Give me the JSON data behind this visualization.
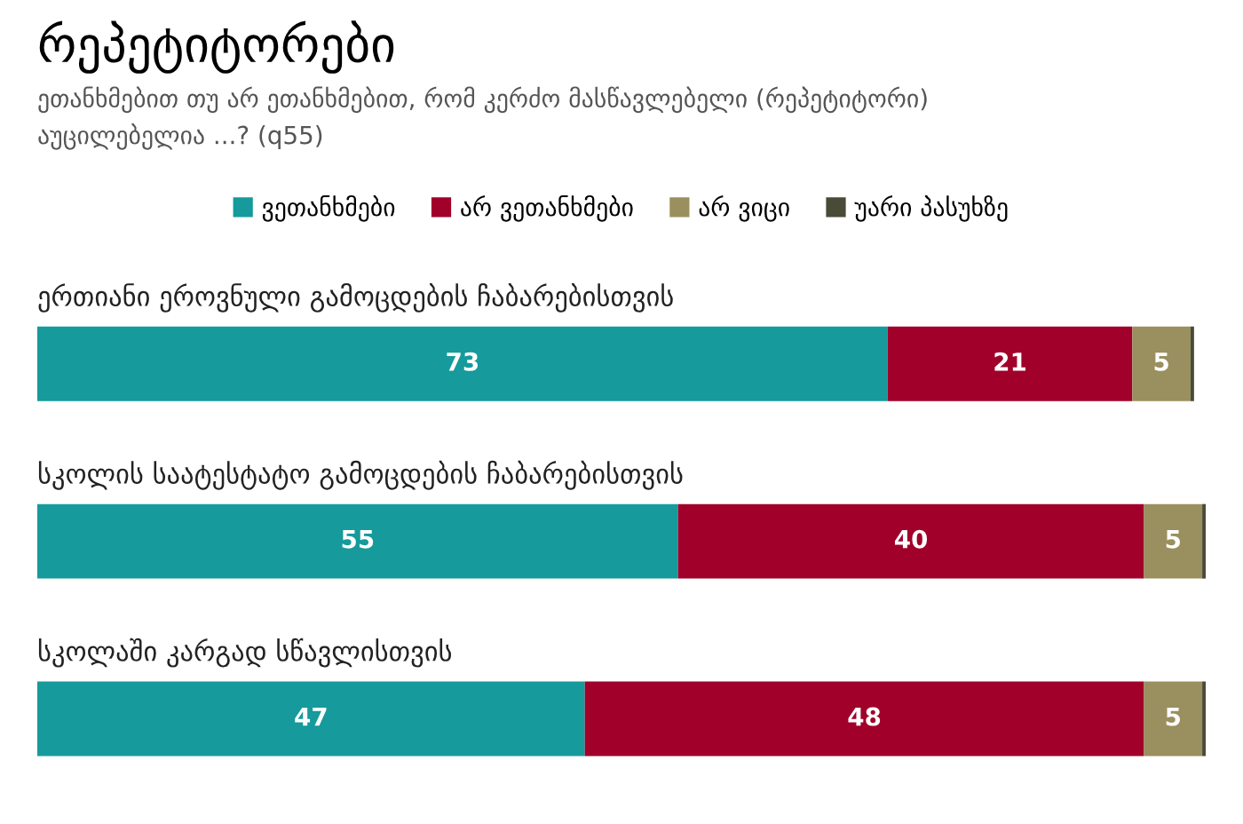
{
  "chart_data": {
    "type": "bar",
    "orientation": "horizontal",
    "stacked": true,
    "title": "რეპეტიტორები",
    "subtitle": "ეთანხმებით თუ არ ეთანხმებით, რომ კერძო მასწავლებელი (რეპეტიტორი)\nაუცილებელია ...? (q55)",
    "categories": [
      "ერთიანი ეროვნული გამოცდების ჩაბარებისთვის",
      "სკოლის საატესტატო გამოცდების ჩაბარებისთვის",
      "სკოლაში კარგად სწავლისთვის"
    ],
    "series": [
      {
        "name": "ვეთანხმები",
        "color": "#169a9c",
        "values": [
          73,
          55,
          47
        ],
        "value_labels": [
          "73",
          "55",
          "47"
        ]
      },
      {
        "name": "არ ვეთანხმები",
        "color": "#a0002a",
        "values": [
          21,
          40,
          48
        ],
        "value_labels": [
          "21",
          "40",
          "48"
        ]
      },
      {
        "name": "არ ვიცი",
        "color": "#9a8f5e",
        "values": [
          5,
          5,
          5
        ],
        "value_labels": [
          "5",
          "5",
          "5"
        ]
      },
      {
        "name": "უარი პასუხზე",
        "color": "#4a4a38",
        "values": [
          0.3,
          0.3,
          0.3
        ]
      }
    ],
    "legend": "top"
  }
}
